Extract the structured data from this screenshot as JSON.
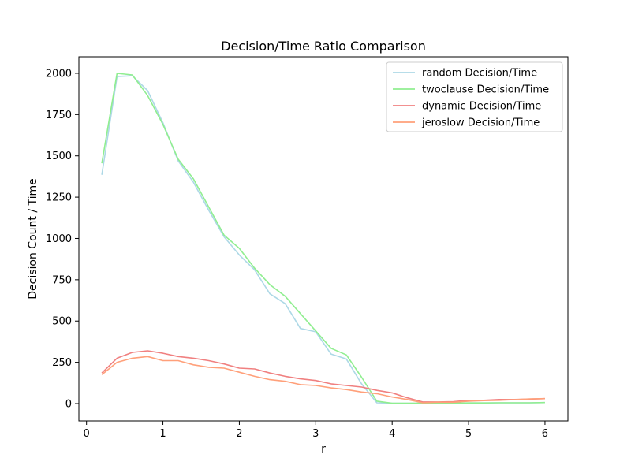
{
  "chart_data": {
    "type": "line",
    "title": "Decision/Time Ratio Comparison",
    "xlabel": "r",
    "ylabel": "Decision Count / Time",
    "xlim": [
      -0.1,
      6.3
    ],
    "ylim": [
      -105,
      2100
    ],
    "xticks": [
      0,
      1,
      2,
      3,
      4,
      5,
      6
    ],
    "yticks": [
      0,
      250,
      500,
      750,
      1000,
      1250,
      1500,
      1750,
      2000
    ],
    "grid": false,
    "legend": "top-right",
    "x": [
      0.2,
      0.4,
      0.6,
      0.8,
      1.0,
      1.2,
      1.4,
      1.6,
      1.8,
      2.0,
      2.2,
      2.4,
      2.6,
      2.8,
      3.0,
      3.2,
      3.4,
      3.6,
      3.8,
      4.0,
      4.2,
      4.4,
      4.6,
      4.8,
      5.0,
      5.2,
      5.4,
      5.6,
      5.8,
      6.0
    ],
    "series": [
      {
        "name": "random Decision/Time",
        "color": "#add8e6",
        "values": [
          1385,
          1980,
          1985,
          1895,
          1700,
          1470,
          1340,
          1170,
          1010,
          900,
          810,
          665,
          605,
          455,
          435,
          300,
          270,
          120,
          5,
          2,
          2,
          2,
          3,
          3,
          4,
          4,
          5,
          5,
          5,
          6
        ]
      },
      {
        "name": "twoclause Decision/Time",
        "color": "#90ee90",
        "values": [
          1455,
          2000,
          1990,
          1865,
          1690,
          1480,
          1360,
          1190,
          1020,
          940,
          820,
          720,
          650,
          545,
          440,
          335,
          295,
          160,
          15,
          2,
          2,
          2,
          3,
          3,
          4,
          4,
          5,
          5,
          5,
          6
        ]
      },
      {
        "name": "dynamic Decision/Time",
        "color": "#f08080",
        "values": [
          185,
          275,
          310,
          320,
          305,
          285,
          275,
          260,
          240,
          215,
          210,
          185,
          165,
          150,
          140,
          120,
          110,
          100,
          80,
          65,
          35,
          10,
          10,
          12,
          20,
          20,
          25,
          25,
          27,
          30
        ]
      },
      {
        "name": "jeroslow Decision/Time",
        "color": "#ffa07a",
        "values": [
          175,
          250,
          275,
          285,
          260,
          260,
          235,
          220,
          215,
          190,
          165,
          145,
          135,
          115,
          110,
          95,
          85,
          70,
          60,
          40,
          25,
          5,
          8,
          8,
          15,
          18,
          20,
          24,
          28,
          30
        ]
      }
    ]
  }
}
